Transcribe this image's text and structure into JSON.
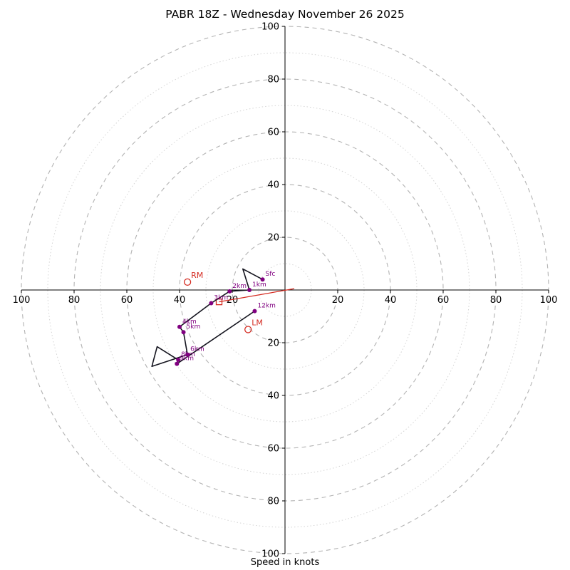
{
  "figure": {
    "title": "PABR 18Z - Wednesday November 26 2025",
    "xlabel": "Speed in knots"
  },
  "chart_data": {
    "type": "line",
    "subtype": "polar_hodograph",
    "title": "PABR 18Z - Wednesday November 26 2025",
    "xlabel": "Speed in knots",
    "units": "knots",
    "axis_range": 100,
    "rings_major": [
      20,
      40,
      60,
      80,
      100
    ],
    "rings_minor": [
      10,
      30,
      50,
      70,
      90
    ],
    "axis_ticks": [
      20,
      40,
      60,
      80,
      100
    ],
    "colors": {
      "trace": "#14141e",
      "levels": "#800080",
      "storm": "#d42a20",
      "ring_major": "#b3b3b3",
      "ring_minor": "#d4d4d4",
      "axis": "#000000"
    },
    "trace_uv": [
      [
        -8.5,
        4
      ],
      [
        -16,
        8
      ],
      [
        -13.5,
        0
      ],
      [
        -21,
        -0.5
      ],
      [
        -28,
        -5
      ],
      [
        -40,
        -14
      ],
      [
        -38.5,
        -16
      ],
      [
        -37,
        -24.5
      ],
      [
        -50.5,
        -29
      ],
      [
        -48.5,
        -21.5
      ],
      [
        -40.5,
        -26.5
      ],
      [
        -41,
        -28
      ],
      [
        -11.5,
        -8
      ]
    ],
    "levels": [
      {
        "label": "Sfc",
        "u": -8.5,
        "v": 4
      },
      {
        "label": "1km",
        "u": -13.5,
        "v": 0
      },
      {
        "label": "2km",
        "u": -21,
        "v": -0.5
      },
      {
        "label": "3km",
        "u": -28,
        "v": -5
      },
      {
        "label": "4km",
        "u": -40,
        "v": -14
      },
      {
        "label": "5km",
        "u": -38.5,
        "v": -16
      },
      {
        "label": "6km",
        "u": -37,
        "v": -24.5
      },
      {
        "label": "8km",
        "u": -40.5,
        "v": -26.5
      },
      {
        "label": "9km",
        "u": -41,
        "v": -28
      },
      {
        "label": "12km",
        "u": -11.5,
        "v": -8
      }
    ],
    "storm_markers": [
      {
        "label": "RM",
        "shape": "circle",
        "u": -37,
        "v": 3
      },
      {
        "label": "LM",
        "shape": "circle",
        "u": -14,
        "v": -15
      },
      {
        "label": "",
        "shape": "square",
        "u": -25,
        "v": -4.5
      }
    ],
    "storm_motion_line": [
      [
        3.5,
        0.5
      ],
      [
        -25,
        -4.5
      ]
    ]
  }
}
